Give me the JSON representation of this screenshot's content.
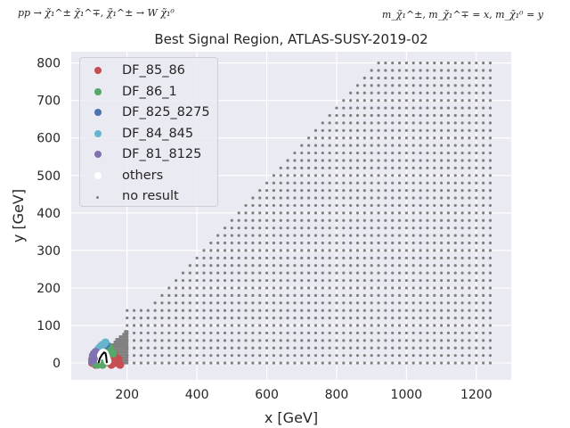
{
  "header": {
    "left_note": "pp → χ̃₁^± χ̃₁^∓, χ̃₁^± → W χ̃₁⁰",
    "right_note": "m_χ̃₁^±, m_χ̃₁^∓ = x, m_χ̃₁⁰ = y"
  },
  "chart_data": {
    "type": "scatter",
    "title": "Best Signal Region, ATLAS-SUSY-2019-02",
    "xlabel": "x [GeV]",
    "ylabel": "y [GeV]",
    "xlim": [
      40,
      1300
    ],
    "ylim": [
      -45,
      830
    ],
    "xticks": [
      200,
      400,
      600,
      800,
      1000,
      1200
    ],
    "yticks": [
      0,
      100,
      200,
      300,
      400,
      500,
      600,
      700,
      800
    ],
    "grid": true,
    "legend_position": "upper-left",
    "background": "#eaeaf2",
    "series": [
      {
        "name": "DF_85_86",
        "color": "#c44e52",
        "marker": "large-dot",
        "points": [
          [
            100,
            10
          ],
          [
            105,
            15
          ],
          [
            110,
            5
          ],
          [
            115,
            20
          ],
          [
            120,
            25
          ],
          [
            125,
            10
          ],
          [
            130,
            0
          ],
          [
            135,
            15
          ],
          [
            140,
            5
          ],
          [
            145,
            20
          ],
          [
            150,
            0
          ],
          [
            155,
            -5
          ],
          [
            160,
            10
          ],
          [
            165,
            20
          ],
          [
            170,
            0
          ],
          [
            175,
            10
          ],
          [
            180,
            -5
          ],
          [
            110,
            -5
          ],
          [
            100,
            0
          ],
          [
            125,
            -3
          ]
        ]
      },
      {
        "name": "DF_86_1",
        "color": "#55a868",
        "marker": "large-dot",
        "points": [
          [
            105,
            0
          ],
          [
            110,
            10
          ],
          [
            115,
            5
          ],
          [
            120,
            0
          ],
          [
            125,
            15
          ],
          [
            130,
            -5
          ],
          [
            135,
            30
          ],
          [
            140,
            35
          ],
          [
            145,
            45
          ],
          [
            150,
            40
          ],
          [
            155,
            30
          ],
          [
            160,
            25
          ],
          [
            135,
            5
          ],
          [
            115,
            -5
          ],
          [
            120,
            10
          ]
        ]
      },
      {
        "name": "DF_825_8275",
        "color": "#4c72b0",
        "marker": "large-dot",
        "points": [
          [
            120,
            30
          ],
          [
            125,
            35
          ],
          [
            130,
            40
          ],
          [
            135,
            45
          ],
          [
            115,
            30
          ],
          [
            125,
            25
          ],
          [
            140,
            50
          ]
        ]
      },
      {
        "name": "DF_84_845",
        "color": "#64b5cd",
        "marker": "large-dot",
        "points": [
          [
            118,
            38
          ],
          [
            123,
            43
          ],
          [
            128,
            48
          ],
          [
            133,
            50
          ],
          [
            138,
            55
          ]
        ]
      },
      {
        "name": "DF_81_8125",
        "color": "#8172b2",
        "marker": "large-dot",
        "points": [
          [
            100,
            5
          ],
          [
            102,
            20
          ],
          [
            105,
            25
          ],
          [
            110,
            30
          ],
          [
            108,
            12
          ]
        ]
      },
      {
        "name": "others",
        "color": "#ffffff",
        "marker": "large-dot",
        "points": [
          [
            125,
            20
          ],
          [
            128,
            25
          ],
          [
            132,
            28
          ],
          [
            136,
            25
          ],
          [
            138,
            20
          ],
          [
            140,
            15
          ],
          [
            142,
            10
          ],
          [
            144,
            5
          ]
        ]
      },
      {
        "name": "no result",
        "color": "#808080",
        "marker": "small-dot",
        "grids": [
          {
            "x": [
              200,
              500,
              20
            ],
            "y": [
              0,
              140,
              20
            ]
          },
          {
            "x": [
              220,
              500,
              20
            ],
            "y": [
              0,
              0,
              20
            ],
            "extend_to_diagonal": true,
            "x_from": 220,
            "x_to": 900,
            "x_step": 20,
            "y_top": 800,
            "offset": 120
          },
          {
            "x": [
              920,
              1250,
              20
            ],
            "y": [
              0,
              800,
              20
            ]
          },
          {
            "x": [
              140,
              200,
              5
            ],
            "y": [
              0,
              90,
              7
            ]
          }
        ]
      }
    ],
    "annotation": {
      "type": "contour",
      "color": "#000000",
      "outline": "#ffffff",
      "points": [
        [
          118,
          0
        ],
        [
          122,
          12
        ],
        [
          128,
          22
        ],
        [
          134,
          28
        ],
        [
          138,
          26
        ],
        [
          140,
          18
        ],
        [
          141,
          8
        ],
        [
          142,
          0
        ]
      ]
    }
  }
}
